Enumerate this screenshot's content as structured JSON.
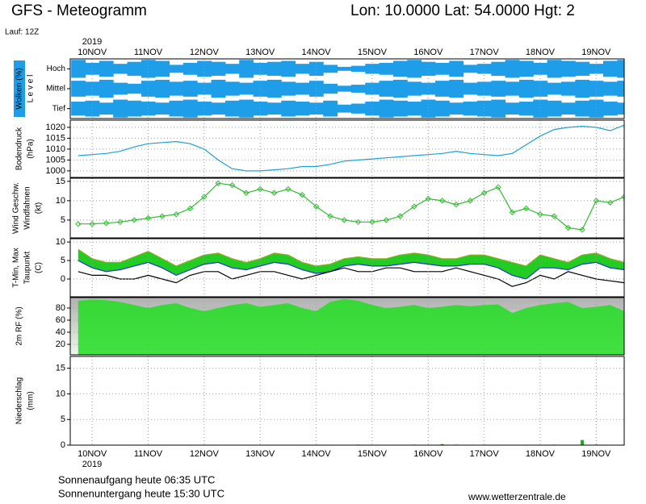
{
  "header": {
    "title": "GFS - Meteogramm",
    "location": "Lon: 10.0000  Lat: 54.0000  Hgt: 2",
    "run": "Lauf: 12Z",
    "year_top": "2019",
    "year_bottom": "2019"
  },
  "footer": {
    "sunrise": "Sonnenaufgang heute 06:35 UTC",
    "sunset": "Sonnenuntergang heute 15:30 UTC",
    "source": "www.wetterzentrale.de"
  },
  "chart_data": [
    {
      "type": "cloud",
      "ylabel": [
        "Wolken (%)",
        "L e v e l"
      ],
      "ylabel_colors": [
        "#ffffff",
        "#000000"
      ],
      "color": "#1e9ee8",
      "x": [
        -6,
        0,
        6,
        12,
        18,
        24,
        30,
        36,
        42,
        48,
        54,
        60,
        66,
        72,
        78,
        84,
        90,
        96,
        102,
        108,
        114,
        120,
        126,
        132,
        138,
        144,
        150,
        156,
        162,
        168,
        174,
        180,
        186,
        192,
        198,
        204,
        210,
        216,
        222,
        228
      ],
      "xlim": [
        -9.4,
        228
      ],
      "xticks": [
        {
          "value": 0,
          "label": "10NOV"
        },
        {
          "value": 24,
          "label": "11NOV"
        },
        {
          "value": 48,
          "label": "12NOV"
        },
        {
          "value": 72,
          "label": "13NOV"
        },
        {
          "value": 96,
          "label": "14NOV"
        },
        {
          "value": 120,
          "label": "15NOV"
        },
        {
          "value": 144,
          "label": "16NOV"
        },
        {
          "value": 168,
          "label": "17NOV"
        },
        {
          "value": 192,
          "label": "18NOV"
        },
        {
          "value": 216,
          "label": "19NOV"
        }
      ],
      "series": [
        {
          "name": "Hoch",
          "values": [
            90,
            60,
            80,
            50,
            70,
            90,
            80,
            40,
            60,
            80,
            70,
            50,
            90,
            60,
            70,
            80,
            50,
            70,
            40,
            20,
            30,
            50,
            60,
            80,
            90,
            70,
            60,
            80,
            40,
            50,
            70,
            90,
            80,
            60,
            90,
            80,
            70,
            50,
            80,
            90
          ]
        },
        {
          "name": "Mittel",
          "values": [
            80,
            70,
            90,
            60,
            50,
            80,
            90,
            70,
            80,
            60,
            90,
            70,
            60,
            80,
            90,
            70,
            60,
            80,
            50,
            30,
            40,
            60,
            80,
            90,
            70,
            60,
            80,
            90,
            60,
            70,
            80,
            70,
            90,
            80,
            60,
            70,
            90,
            80,
            70,
            80
          ]
        },
        {
          "name": "Tief",
          "values": [
            70,
            80,
            60,
            90,
            80,
            70,
            60,
            80,
            90,
            70,
            60,
            80,
            90,
            70,
            60,
            80,
            70,
            60,
            80,
            40,
            50,
            70,
            90,
            80,
            70,
            90,
            80,
            60,
            70,
            80,
            90,
            60,
            70,
            90,
            80,
            60,
            80,
            90,
            70,
            60
          ]
        }
      ]
    },
    {
      "type": "line",
      "ylabel": [
        "Bodendruck",
        "(hPa)"
      ],
      "ylabel_colors": [
        "#000000",
        "#000000"
      ],
      "x": [
        -6,
        0,
        6,
        12,
        18,
        24,
        30,
        36,
        42,
        48,
        54,
        60,
        66,
        72,
        78,
        84,
        90,
        96,
        102,
        108,
        114,
        120,
        126,
        132,
        138,
        144,
        150,
        156,
        162,
        168,
        174,
        180,
        186,
        192,
        198,
        204,
        210,
        216,
        222,
        228
      ],
      "xlim": [
        -9.4,
        228
      ],
      "xticks": [
        0,
        24,
        48,
        72,
        96,
        120,
        144,
        168,
        192,
        216
      ],
      "ylim": [
        997,
        1023.3
      ],
      "yticks": [
        1000,
        1005,
        1010,
        1015,
        1020
      ],
      "series": [
        {
          "color": "#1aa0d8",
          "values": [
            1007,
            1007.5,
            1008,
            1009,
            1011,
            1012.5,
            1013,
            1013.5,
            1012.5,
            1010,
            1005,
            1001,
            1000,
            1000,
            1000.5,
            1001,
            1002,
            1002,
            1003,
            1004.5,
            1005,
            1005.5,
            1006,
            1006.5,
            1007,
            1007.5,
            1008,
            1009,
            1008,
            1007.5,
            1007,
            1008,
            1012,
            1016,
            1019,
            1020,
            1020.5,
            1020,
            1018.5,
            1021
          ]
        }
      ]
    },
    {
      "type": "line",
      "markers": true,
      "ylabel": [
        "Wind Geschw.",
        "Windfahnen",
        "(kt)"
      ],
      "ylabel_colors": [
        "#22bb22",
        "#000000",
        "#000000"
      ],
      "x": [
        -6,
        0,
        6,
        12,
        18,
        24,
        30,
        36,
        42,
        48,
        54,
        60,
        66,
        72,
        78,
        84,
        90,
        96,
        102,
        108,
        114,
        120,
        126,
        132,
        138,
        144,
        150,
        156,
        162,
        168,
        174,
        180,
        186,
        192,
        198,
        204,
        210,
        216,
        222,
        228
      ],
      "xlim": [
        -9.4,
        228
      ],
      "xticks": [
        0,
        24,
        48,
        72,
        96,
        120,
        144,
        168,
        192,
        216
      ],
      "ylim": [
        0.4,
        15.8
      ],
      "yticks": [
        5,
        10,
        15
      ],
      "series": [
        {
          "color": "#33bb33",
          "values": [
            4,
            4,
            4.2,
            4.5,
            5,
            5.5,
            6,
            6.5,
            8,
            11,
            14.5,
            14,
            12,
            13,
            12,
            13,
            11.5,
            8.5,
            6,
            5,
            4.5,
            4.5,
            5,
            6,
            8.5,
            10.5,
            10,
            9,
            10,
            12,
            13.5,
            7,
            8,
            6.5,
            6,
            3,
            2.5,
            10,
            9.5,
            11
          ]
        }
      ]
    },
    {
      "type": "band",
      "fill": "#22cc22",
      "ylabel": [
        "T-Min, Max",
        "Taupunkt",
        "(C)"
      ],
      "ylabel_colors": [
        "#2222dd",
        "#000000",
        "#000000"
      ],
      "x": [
        -6,
        0,
        6,
        12,
        18,
        24,
        30,
        36,
        42,
        48,
        54,
        60,
        66,
        72,
        78,
        84,
        90,
        96,
        102,
        108,
        114,
        120,
        126,
        132,
        138,
        144,
        150,
        156,
        162,
        168,
        174,
        180,
        186,
        192,
        198,
        204,
        210,
        216,
        222,
        228
      ],
      "xlim": [
        -9.4,
        228
      ],
      "xticks": [
        0,
        24,
        48,
        72,
        96,
        120,
        144,
        168,
        192,
        216
      ],
      "ylim": [
        -4.8,
        10.9
      ],
      "yticks": [
        0,
        5,
        10
      ],
      "series": [
        {
          "color": "#2233dd",
          "values": [
            5,
            3,
            2,
            2.5,
            3.5,
            4.5,
            3,
            1,
            2.5,
            4,
            4.5,
            3,
            2.5,
            3.5,
            4.5,
            4,
            2.5,
            1.5,
            2,
            3.5,
            4,
            3.5,
            3.5,
            4,
            4.5,
            4,
            3.5,
            3.5,
            4,
            4,
            3,
            1,
            0,
            3,
            3,
            2.5,
            4,
            4.5,
            3,
            2.5
          ]
        },
        {
          "color": "#99aa22",
          "values": [
            8,
            5.5,
            4.5,
            4.5,
            6,
            7.5,
            5.5,
            3.5,
            5,
            6.5,
            7,
            5.5,
            4.5,
            5.5,
            7,
            6.5,
            4.5,
            3.5,
            4,
            5.5,
            6,
            5.5,
            5.5,
            6.5,
            7,
            6.5,
            5.5,
            5.5,
            6.5,
            6.5,
            5.5,
            4.5,
            3.5,
            6.5,
            5.5,
            4.5,
            6.5,
            7,
            5.5,
            4.5
          ]
        },
        {
          "color": "#000000",
          "values": [
            2,
            1,
            1,
            0,
            0,
            1,
            0,
            -1,
            1,
            2,
            2,
            0,
            1,
            2,
            2,
            1,
            0,
            1,
            2,
            3,
            2,
            2,
            3,
            3,
            2,
            2,
            2,
            3,
            2,
            1,
            0,
            -2,
            -1,
            1,
            0,
            2,
            1,
            0,
            -0.5,
            -1
          ]
        }
      ]
    },
    {
      "type": "area",
      "ylabel": [
        "2m RF (%)"
      ],
      "ylabel_colors": [
        "#22bb22"
      ],
      "x": [
        -6,
        0,
        6,
        12,
        18,
        24,
        30,
        36,
        42,
        48,
        54,
        60,
        66,
        72,
        78,
        84,
        90,
        96,
        102,
        108,
        114,
        120,
        126,
        132,
        138,
        144,
        150,
        156,
        162,
        168,
        174,
        180,
        186,
        192,
        198,
        204,
        210,
        216,
        222,
        228
      ],
      "xlim": [
        -9.4,
        228
      ],
      "xticks": [
        0,
        24,
        48,
        72,
        96,
        120,
        144,
        168,
        192,
        216
      ],
      "ylim": [
        2.7,
        97.3
      ],
      "yticks": [
        20,
        40,
        60,
        80
      ],
      "series": [
        {
          "color": "#22dd22",
          "values": [
            92,
            94,
            93,
            90,
            85,
            80,
            85,
            88,
            80,
            75,
            80,
            85,
            88,
            82,
            85,
            88,
            80,
            75,
            90,
            95,
            92,
            85,
            80,
            82,
            85,
            80,
            82,
            85,
            83,
            85,
            86,
            72,
            80,
            85,
            88,
            90,
            80,
            82,
            85,
            75
          ]
        }
      ]
    },
    {
      "type": "bar",
      "ylabel": [
        "Niederschlag",
        "(mm)"
      ],
      "ylabel_colors": [
        "#000000",
        "#000000"
      ],
      "x": [
        -6,
        0,
        6,
        12,
        18,
        24,
        30,
        36,
        42,
        48,
        54,
        60,
        66,
        72,
        78,
        84,
        90,
        96,
        102,
        108,
        114,
        120,
        126,
        132,
        138,
        144,
        150,
        156,
        162,
        168,
        174,
        180,
        186,
        192,
        198,
        204,
        210,
        216,
        222,
        228
      ],
      "xlim": [
        -9.4,
        228
      ],
      "xticks": [
        {
          "value": 0,
          "label": "10NOV"
        },
        {
          "value": 24,
          "label": "11NOV"
        },
        {
          "value": 48,
          "label": "12NOV"
        },
        {
          "value": 72,
          "label": "13NOV"
        },
        {
          "value": 96,
          "label": "14NOV"
        },
        {
          "value": 120,
          "label": "15NOV"
        },
        {
          "value": 144,
          "label": "16NOV"
        },
        {
          "value": 168,
          "label": "17NOV"
        },
        {
          "value": 192,
          "label": "18NOV"
        },
        {
          "value": 216,
          "label": "19NOV"
        }
      ],
      "ylim": [
        0,
        17.3
      ],
      "yticks": [
        0,
        5,
        10,
        15
      ],
      "series": [
        {
          "color": "#22aa22",
          "values": [
            0,
            0,
            0,
            0,
            0,
            0,
            0,
            0,
            0,
            0,
            0,
            0,
            0,
            0,
            0,
            0,
            0,
            0,
            0,
            0,
            0.1,
            0,
            0,
            0,
            0.1,
            0,
            0.2,
            0.1,
            0,
            0,
            0,
            0,
            0,
            0,
            0.1,
            0,
            1,
            0.1,
            0,
            0
          ]
        }
      ]
    }
  ]
}
